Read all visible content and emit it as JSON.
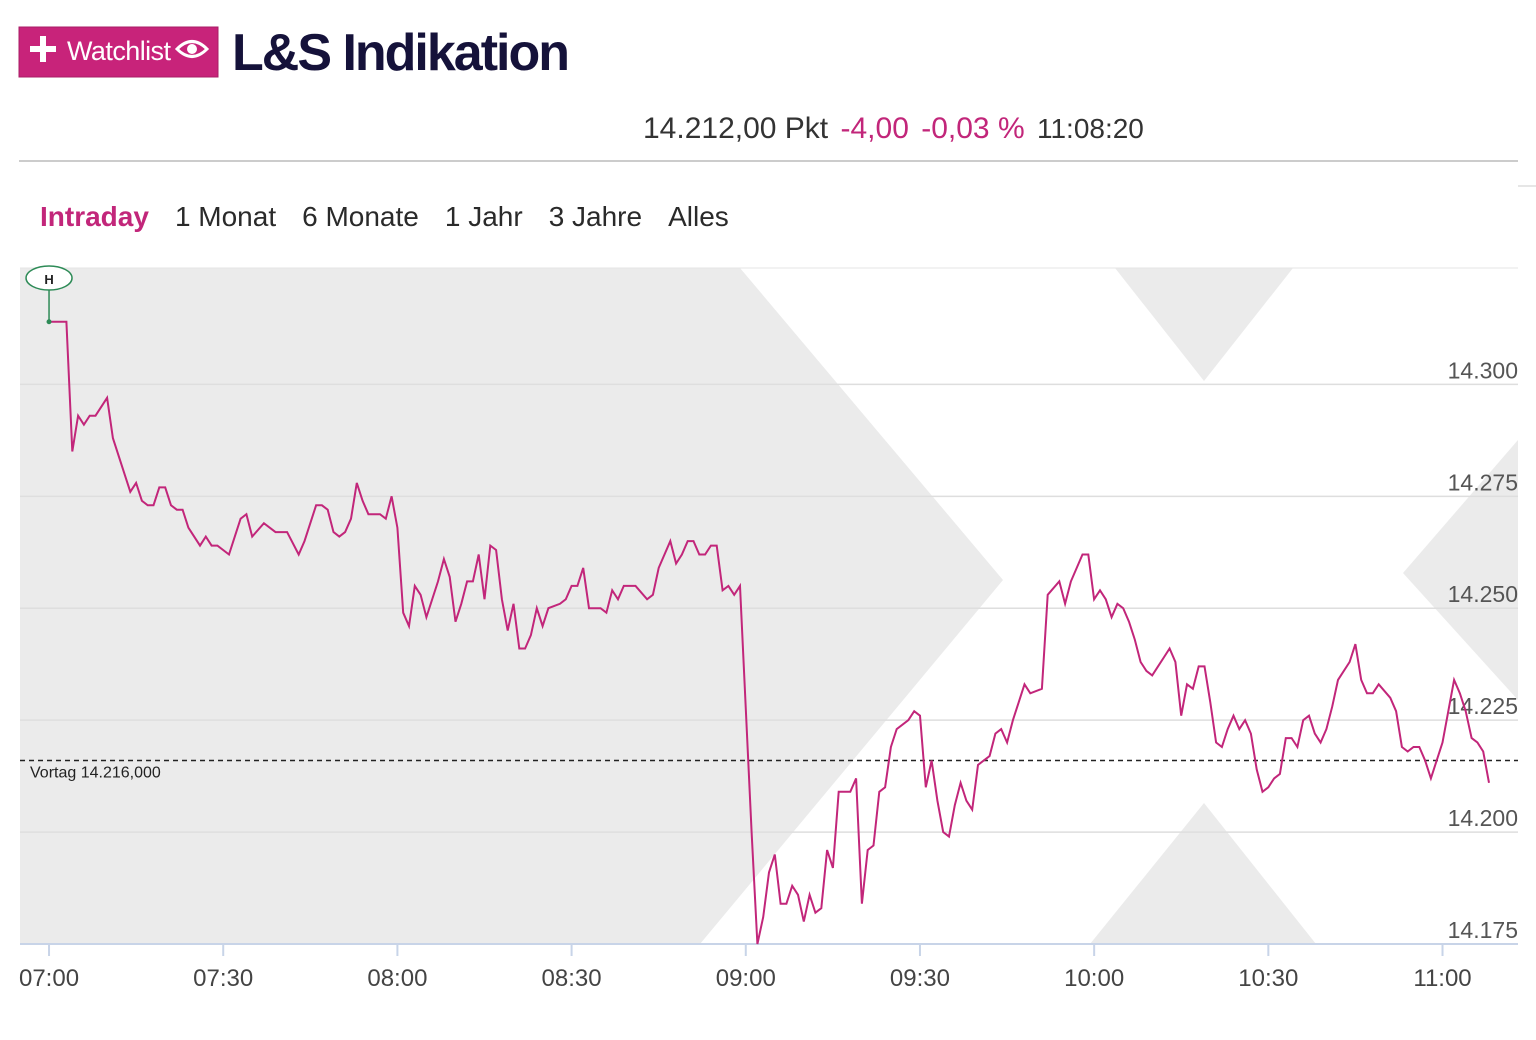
{
  "header": {
    "watchlist_button": "Watchlist",
    "title": "L&S Indikation",
    "quote": {
      "price": "14.212,00 Pkt",
      "change": "-4,00",
      "change_pct": "-0,03 %",
      "time": "11:08:20"
    },
    "tabs": [
      "Intraday",
      "1 Monat",
      "6 Monate",
      "1 Jahr",
      "3 Jahre",
      "Alles"
    ],
    "active_tab": "Intraday"
  },
  "chart_data": {
    "type": "line",
    "color": "#c2267a",
    "high_marker": "H",
    "x": [
      "07:00",
      "07:03",
      "07:04",
      "07:05",
      "07:06",
      "07:07",
      "07:08",
      "07:10",
      "07:11",
      "07:14",
      "07:15",
      "07:16",
      "07:17",
      "07:18",
      "07:19",
      "07:20",
      "07:21",
      "07:22",
      "07:23",
      "07:24",
      "07:26",
      "07:27",
      "07:28",
      "07:29",
      "07:31",
      "07:32",
      "07:33",
      "07:34",
      "07:35",
      "07:37",
      "07:39",
      "07:40",
      "07:41",
      "07:43",
      "07:44",
      "07:46",
      "07:47",
      "07:48",
      "07:49",
      "07:50",
      "07:51",
      "07:52",
      "07:53",
      "07:54",
      "07:55",
      "07:57",
      "07:58",
      "07:59",
      "08:00",
      "08:01",
      "08:02",
      "08:03",
      "08:04",
      "08:05",
      "08:07",
      "08:08",
      "08:09",
      "08:10",
      "08:11",
      "08:12",
      "08:13",
      "08:14",
      "08:15",
      "08:16",
      "08:17",
      "08:18",
      "08:19",
      "08:20",
      "08:21",
      "08:22",
      "08:23",
      "08:24",
      "08:25",
      "08:26",
      "08:28",
      "08:29",
      "08:30",
      "08:31",
      "08:32",
      "08:33",
      "08:35",
      "08:36",
      "08:37",
      "08:38",
      "08:39",
      "08:41",
      "08:43",
      "08:44",
      "08:45",
      "08:47",
      "08:48",
      "08:49",
      "08:50",
      "08:51",
      "08:52",
      "08:53",
      "08:54",
      "08:55",
      "08:56",
      "08:57",
      "08:58",
      "08:59",
      "09:01",
      "09:02",
      "09:03",
      "09:04",
      "09:05",
      "09:06",
      "09:07",
      "09:08",
      "09:09",
      "09:10",
      "09:11",
      "09:12",
      "09:13",
      "09:14",
      "09:15",
      "09:16",
      "09:17",
      "09:18",
      "09:19",
      "09:20",
      "09:21",
      "09:22",
      "09:23",
      "09:24",
      "09:25",
      "09:26",
      "09:28",
      "09:29",
      "09:30",
      "09:31",
      "09:32",
      "09:33",
      "09:34",
      "09:35",
      "09:36",
      "09:37",
      "09:38",
      "09:39",
      "09:40",
      "09:42",
      "09:43",
      "09:44",
      "09:45",
      "09:46",
      "09:47",
      "09:48",
      "09:49",
      "09:51",
      "09:52",
      "09:54",
      "09:55",
      "09:56",
      "09:58",
      "09:59",
      "10:00",
      "10:01",
      "10:02",
      "10:03",
      "10:04",
      "10:05",
      "10:06",
      "10:07",
      "10:08",
      "10:09",
      "10:10",
      "10:11",
      "10:12",
      "10:13",
      "10:14",
      "10:15",
      "10:16",
      "10:17",
      "10:18",
      "10:19",
      "10:20",
      "10:21",
      "10:22",
      "10:23",
      "10:24",
      "10:25",
      "10:26",
      "10:27",
      "10:28",
      "10:29",
      "10:30",
      "10:31",
      "10:32",
      "10:33",
      "10:34",
      "10:35",
      "10:36",
      "10:37",
      "10:38",
      "10:39",
      "10:40",
      "10:41",
      "10:42",
      "10:44",
      "10:45",
      "10:46",
      "10:47",
      "10:48",
      "10:49",
      "10:51",
      "10:52",
      "10:53",
      "10:54",
      "10:55",
      "10:56",
      "10:57",
      "10:58",
      "11:00",
      "11:01",
      "11:02",
      "11:03",
      "11:04",
      "11:05",
      "11:06",
      "11:07",
      "11:08"
    ],
    "values": [
      14314,
      14314,
      14285,
      14293,
      14291,
      14293,
      14293,
      14297,
      14288,
      14276,
      14278,
      14274,
      14273,
      14273,
      14277,
      14277,
      14273,
      14272,
      14272,
      14268,
      14264,
      14266,
      14264,
      14264,
      14262,
      14266,
      14270,
      14271,
      14266,
      14269,
      14267,
      14267,
      14267,
      14262,
      14265,
      14273,
      14273,
      14272,
      14267,
      14266,
      14267,
      14270,
      14278,
      14274,
      14271,
      14271,
      14270,
      14275,
      14268,
      14249,
      14246,
      14255,
      14253,
      14248,
      14256,
      14261,
      14257,
      14247,
      14251,
      14256,
      14256,
      14262,
      14252,
      14264,
      14263,
      14252,
      14245,
      14251,
      14241,
      14241,
      14244,
      14250,
      14246,
      14250,
      14251,
      14252,
      14255,
      14255,
      14259,
      14250,
      14250,
      14249,
      14254,
      14252,
      14255,
      14255,
      14252,
      14253,
      14259,
      14265,
      14260,
      14262,
      14265,
      14265,
      14262,
      14262,
      14264,
      14264,
      14254,
      14255,
      14253,
      14255,
      14200,
      14175,
      14181,
      14191,
      14195,
      14184,
      14184,
      14188,
      14186,
      14180,
      14186,
      14182,
      14183,
      14196,
      14192,
      14209,
      14209,
      14209,
      14212,
      14184,
      14196,
      14197,
      14209,
      14210,
      14219,
      14223,
      14225,
      14227,
      14226,
      14210,
      14216,
      14207,
      14200,
      14199,
      14206,
      14211,
      14207,
      14205,
      14215,
      14217,
      14222,
      14223,
      14220,
      14225,
      14229,
      14233,
      14231,
      14232,
      14253,
      14256,
      14251,
      14256,
      14262,
      14262,
      14252,
      14254,
      14252,
      14248,
      14251,
      14250,
      14247,
      14243,
      14238,
      14236,
      14235,
      14237,
      14239,
      14241,
      14238,
      14226,
      14233,
      14232,
      14237,
      14237,
      14229,
      14220,
      14219,
      14223,
      14226,
      14223,
      14225,
      14222,
      14214,
      14209,
      14210,
      14212,
      14213,
      14221,
      14221,
      14219,
      14225,
      14226,
      14222,
      14220,
      14223,
      14228,
      14234,
      14238,
      14242,
      14234,
      14231,
      14231,
      14233,
      14230,
      14227,
      14219,
      14218,
      14219,
      14219,
      14216,
      14212,
      14220,
      14227,
      14234,
      14231,
      14227,
      14221,
      14220,
      14218,
      14211
    ],
    "xlim": [
      "06:55",
      "11:13"
    ],
    "xticks": [
      "07:00",
      "07:30",
      "08:00",
      "08:30",
      "09:00",
      "09:30",
      "10:00",
      "10:30",
      "11:00"
    ],
    "ylim": [
      14175,
      14326
    ],
    "yticks": [
      {
        "value": 14175,
        "label": "14.175"
      },
      {
        "value": 14200,
        "label": "14.200"
      },
      {
        "value": 14225,
        "label": "14.225"
      },
      {
        "value": 14250,
        "label": "14.250"
      },
      {
        "value": 14275,
        "label": "14.275"
      },
      {
        "value": 14300,
        "label": "14.300"
      }
    ],
    "grid": true,
    "reference_line": {
      "value": 14216,
      "label": "Vortag 14.216,000"
    }
  }
}
